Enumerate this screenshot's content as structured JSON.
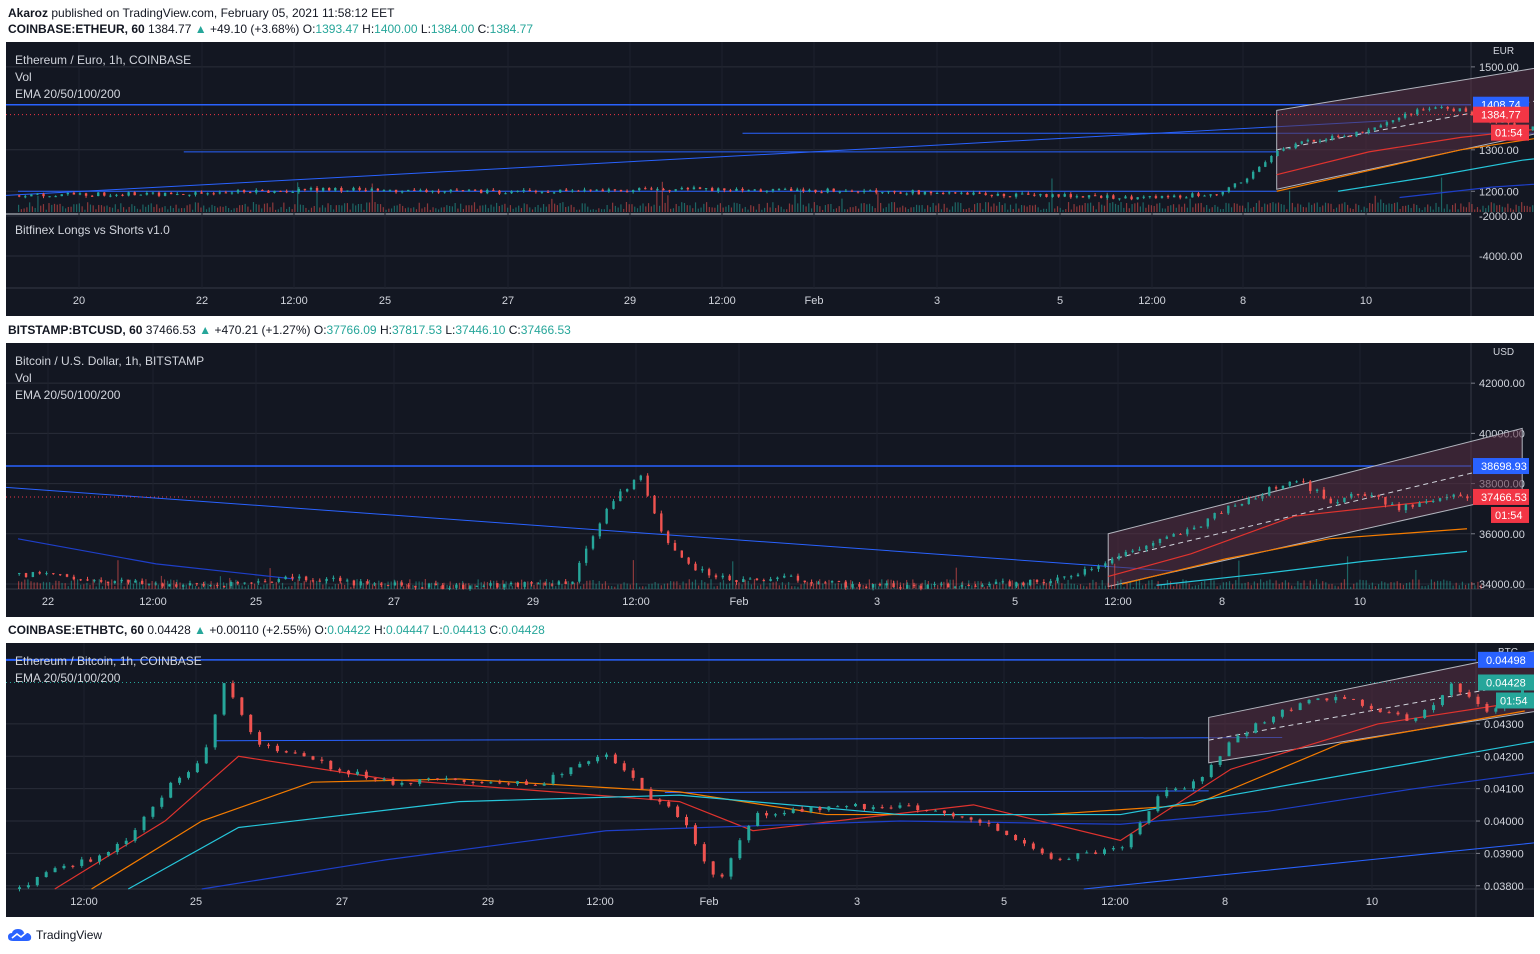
{
  "header": {
    "author": "Akaroz",
    "published_text": "published on TradingView.com, February 05, 2021 11:58:12 EET"
  },
  "footer": {
    "brand": "TradingView"
  },
  "colors": {
    "background": "#131722",
    "text": "#d1d4dc",
    "grid": "#2a2e39",
    "up": "#26a69a",
    "down": "#ef5350",
    "hline": "#2962ff",
    "price_tag": "#f23645",
    "ema20": "#e0332e",
    "ema50": "#f57c00",
    "ema100": "#26c6da",
    "ema200": "#1e3fc9",
    "channel_fill": "#5a3044",
    "channel_line": "#b2b5be"
  },
  "panels": [
    {
      "symbol": "COINBASE:ETHEUR, 60",
      "last": "1384.77",
      "change_arrow": "▲",
      "change": "+49.10 (+3.68%)",
      "o_label": "O:",
      "o": "1393.47",
      "h_label": "H:",
      "h": "1400.00",
      "l_label": "L:",
      "l": "1384.00",
      "c_label": "C:",
      "c": "1384.77",
      "legend": [
        "Ethereum / Euro, 1h, COINBASE",
        "Vol",
        "EMA 20/50/100/200"
      ],
      "sub_legend": "Bitfinex Longs vs Shorts v1.0",
      "currency": "EUR",
      "price_ticks": [
        "1500.00",
        "1300.00",
        "1200.00"
      ],
      "sub_ticks": [
        "-2000.00",
        "-4000.00"
      ],
      "hline_label": "1408.74",
      "price_label": "1384.77",
      "countdown": "01:54",
      "x_ticks": [
        "20",
        "22",
        "12:00",
        "25",
        "27",
        "29",
        "12:00",
        "Feb",
        "3",
        "5",
        "12:00",
        "8",
        "10"
      ]
    },
    {
      "symbol": "BITSTAMP:BTCUSD, 60",
      "last": "37466.53",
      "change_arrow": "▲",
      "change": "+470.21 (+1.27%)",
      "o_label": "O:",
      "o": "37766.09",
      "h_label": "H:",
      "h": "37817.53",
      "l_label": "L:",
      "l": "37446.10",
      "c_label": "C:",
      "c": "37466.53",
      "legend": [
        "Bitcoin / U.S. Dollar, 1h, BITSTAMP",
        "Vol",
        "EMA 20/50/100/200"
      ],
      "currency": "USD",
      "price_ticks": [
        "42000.00",
        "40000.00",
        "38000.00",
        "36000.00",
        "34000.00"
      ],
      "hline_label": "38698.93",
      "price_label": "37466.53",
      "countdown": "01:54",
      "x_ticks": [
        "22",
        "12:00",
        "25",
        "27",
        "29",
        "12:00",
        "Feb",
        "3",
        "5",
        "12:00",
        "8",
        "10"
      ]
    },
    {
      "symbol": "COINBASE:ETHBTC, 60",
      "last": "0.04428",
      "change_arrow": "▲",
      "change": "+0.00110 (+2.55%)",
      "o_label": "O:",
      "o": "0.04422",
      "h_label": "H:",
      "h": "0.04447",
      "l_label": "L:",
      "l": "0.04413",
      "c_label": "C:",
      "c": "0.04428",
      "legend": [
        "Ethereum / Bitcoin, 1h, COINBASE",
        "EMA 20/50/100/200"
      ],
      "currency": "BTC",
      "price_ticks": [
        "0.04300",
        "0.04200",
        "0.04100",
        "0.04000",
        "0.03900",
        "0.03800"
      ],
      "hline_label": "0.04498",
      "price_label": "0.04428",
      "countdown": "01:54",
      "x_ticks": [
        "12:00",
        "25",
        "27",
        "29",
        "12:00",
        "Feb",
        "3",
        "5",
        "12:00",
        "8",
        "10"
      ]
    }
  ],
  "chart_data": [
    {
      "type": "candlestick",
      "title": "Ethereum / Euro, 1h, COINBASE",
      "ylim": [
        1150,
        1560
      ],
      "hline": 1408.74,
      "last": 1384.77,
      "x_range_days": [
        "Jan 19",
        "Feb 11"
      ],
      "close_path_days_values": [
        [
          0,
          1190
        ],
        [
          3,
          1195
        ],
        [
          5,
          1205
        ],
        [
          8,
          1198
        ],
        [
          11,
          1205
        ],
        [
          14,
          1200
        ],
        [
          16,
          1192
        ],
        [
          18,
          1185
        ],
        [
          19.5,
          1192
        ],
        [
          20,
          1230
        ],
        [
          20.5,
          1300
        ],
        [
          21,
          1320
        ],
        [
          22,
          1345
        ],
        [
          22.5,
          1380
        ],
        [
          23,
          1405
        ],
        [
          23.5,
          1395
        ],
        [
          24,
          1370
        ],
        [
          24.5,
          1350
        ],
        [
          25,
          1362
        ],
        [
          25.5,
          1378
        ],
        [
          26,
          1385
        ]
      ],
      "channel_days_values": {
        "x": [
          20.5,
          26.5
        ],
        "upper": [
          1395,
          1540
        ],
        "lower": [
          1205,
          1395
        ]
      },
      "emas": [
        {
          "name": "EMA 20",
          "days_values": [
            [
              20.5,
              1240
            ],
            [
              22,
              1295
            ],
            [
              23.5,
              1330
            ],
            [
              26,
              1370
            ]
          ]
        },
        {
          "name": "EMA 50",
          "days_values": [
            [
              20.5,
              1200
            ],
            [
              22,
              1250
            ],
            [
              23.5,
              1300
            ],
            [
              25.5,
              1345
            ]
          ]
        },
        {
          "name": "EMA 100",
          "days_values": [
            [
              21.5,
              1200
            ],
            [
              23,
              1235
            ],
            [
              24.5,
              1275
            ],
            [
              26,
              1300
            ]
          ]
        },
        {
          "name": "EMA 200",
          "days_values": [
            [
              22.5,
              1185
            ],
            [
              24,
              1210
            ],
            [
              26,
              1230
            ]
          ]
        }
      ]
    },
    {
      "type": "candlestick",
      "title": "Bitcoin / U.S. Dollar, 1h, BITSTAMP",
      "ylim": [
        33800,
        43600
      ],
      "hline": 38698.93,
      "last": 37466.53,
      "x_range_days": [
        "Jan 21",
        "Feb 11"
      ],
      "close_path_days_values": [
        [
          0,
          34400
        ],
        [
          1,
          34200
        ],
        [
          2,
          34000
        ],
        [
          3,
          33950
        ],
        [
          4,
          34300
        ],
        [
          5,
          34000
        ],
        [
          6,
          33900
        ],
        [
          7,
          33950
        ],
        [
          8,
          34100
        ],
        [
          8.5,
          37000
        ],
        [
          9,
          38400
        ],
        [
          9.3,
          36000
        ],
        [
          9.6,
          35000
        ],
        [
          10,
          34300
        ],
        [
          10.5,
          34100
        ],
        [
          11,
          34300
        ],
        [
          12,
          33950
        ],
        [
          13,
          33900
        ],
        [
          14,
          33950
        ],
        [
          15,
          34100
        ],
        [
          16,
          35200
        ],
        [
          17,
          36200
        ],
        [
          17.5,
          37000
        ],
        [
          18,
          37600
        ],
        [
          18.5,
          38200
        ],
        [
          19,
          37300
        ],
        [
          19.5,
          37600
        ],
        [
          20,
          37000
        ],
        [
          20.5,
          37300
        ],
        [
          20.8,
          37500
        ]
      ],
      "channel_days_values": {
        "x": [
          15.8,
          21.8
        ],
        "upper": [
          36000,
          40200
        ],
        "lower": [
          33900,
          37600
        ]
      },
      "emas": [
        {
          "name": "EMA 20",
          "days_values": [
            [
              15.8,
              34300
            ],
            [
              17,
              35200
            ],
            [
              18.5,
              36700
            ],
            [
              20.5,
              37300
            ]
          ]
        },
        {
          "name": "EMA 50",
          "days_values": [
            [
              16,
              34000
            ],
            [
              17.5,
              35000
            ],
            [
              19,
              35800
            ],
            [
              21,
              36200
            ]
          ]
        },
        {
          "name": "EMA 100",
          "days_values": [
            [
              16.5,
              33950
            ],
            [
              18,
              34400
            ],
            [
              19.5,
              34900
            ],
            [
              21,
              35300
            ]
          ]
        },
        {
          "name": "EMA 200",
          "days_values": [
            [
              0,
              35800
            ],
            [
              2,
              34800
            ],
            [
              4,
              34200
            ]
          ]
        }
      ]
    },
    {
      "type": "candlestick",
      "title": "Ethereum / Bitcoin, 1h, COINBASE",
      "ylim": [
        0.0379,
        0.0455
      ],
      "hline": 0.04498,
      "last": 0.04428,
      "x_range_days": [
        "Jan 24",
        "Feb 11"
      ],
      "close_path_days_values": [
        [
          0,
          0.0379
        ],
        [
          0.5,
          0.0386
        ],
        [
          1,
          0.0388
        ],
        [
          1.5,
          0.0395
        ],
        [
          2,
          0.041
        ],
        [
          2.5,
          0.042
        ],
        [
          2.8,
          0.0443
        ],
        [
          3.2,
          0.0425
        ],
        [
          3.8,
          0.042
        ],
        [
          4.5,
          0.0415
        ],
        [
          5,
          0.0412
        ],
        [
          6,
          0.0413
        ],
        [
          7,
          0.0411
        ],
        [
          8,
          0.0421
        ],
        [
          8.5,
          0.0409
        ],
        [
          9,
          0.0401
        ],
        [
          9.5,
          0.038
        ],
        [
          10,
          0.0402
        ],
        [
          11,
          0.0404
        ],
        [
          12,
          0.0405
        ],
        [
          13,
          0.0401
        ],
        [
          14,
          0.0388
        ],
        [
          15,
          0.0392
        ],
        [
          15.5,
          0.0408
        ],
        [
          16,
          0.0412
        ],
        [
          16.5,
          0.0425
        ],
        [
          17,
          0.0432
        ],
        [
          17.5,
          0.0437
        ],
        [
          18,
          0.0438
        ],
        [
          18.5,
          0.0434
        ],
        [
          19,
          0.0431
        ],
        [
          19.5,
          0.0442
        ],
        [
          20,
          0.0434
        ],
        [
          20.5,
          0.0442
        ]
      ],
      "channel_days_values": {
        "x": [
          16.2,
          21.8
        ],
        "upper": [
          0.0432,
          0.0458
        ],
        "lower": [
          0.0418,
          0.0438
        ]
      },
      "trendline_days_values": {
        "x": [
          14.5,
          33
        ],
        "y": [
          0.0379,
          0.0422
        ]
      },
      "emas": [
        {
          "name": "EMA 20",
          "days_values": [
            [
              0.5,
              0.0379
            ],
            [
              2,
              0.04
            ],
            [
              3,
              0.042
            ],
            [
              5,
              0.0413
            ],
            [
              9,
              0.0406
            ],
            [
              10,
              0.0397
            ],
            [
              13,
              0.0405
            ],
            [
              15,
              0.0394
            ],
            [
              16.5,
              0.0416
            ],
            [
              18.5,
              0.043
            ],
            [
              20.5,
              0.0437
            ]
          ]
        },
        {
          "name": "EMA 50",
          "days_values": [
            [
              1,
              0.0379
            ],
            [
              2.5,
              0.04
            ],
            [
              4,
              0.0412
            ],
            [
              6,
              0.0413
            ],
            [
              9,
              0.0409
            ],
            [
              11,
              0.0402
            ],
            [
              14,
              0.0402
            ],
            [
              16,
              0.0405
            ],
            [
              18,
              0.0424
            ],
            [
              20.5,
              0.0434
            ]
          ]
        },
        {
          "name": "EMA 100",
          "days_values": [
            [
              1.5,
              0.0379
            ],
            [
              3,
              0.0398
            ],
            [
              6,
              0.0406
            ],
            [
              9,
              0.0408
            ],
            [
              12,
              0.0402
            ],
            [
              15,
              0.0402
            ],
            [
              17,
              0.041
            ],
            [
              19,
              0.0418
            ],
            [
              21,
              0.0426
            ]
          ]
        },
        {
          "name": "EMA 200",
          "days_values": [
            [
              2.5,
              0.0379
            ],
            [
              5,
              0.0388
            ],
            [
              8,
              0.0397
            ],
            [
              12,
              0.04
            ],
            [
              15,
              0.0399
            ],
            [
              17,
              0.0403
            ],
            [
              19,
              0.041
            ],
            [
              21,
              0.0416
            ]
          ]
        }
      ]
    }
  ]
}
